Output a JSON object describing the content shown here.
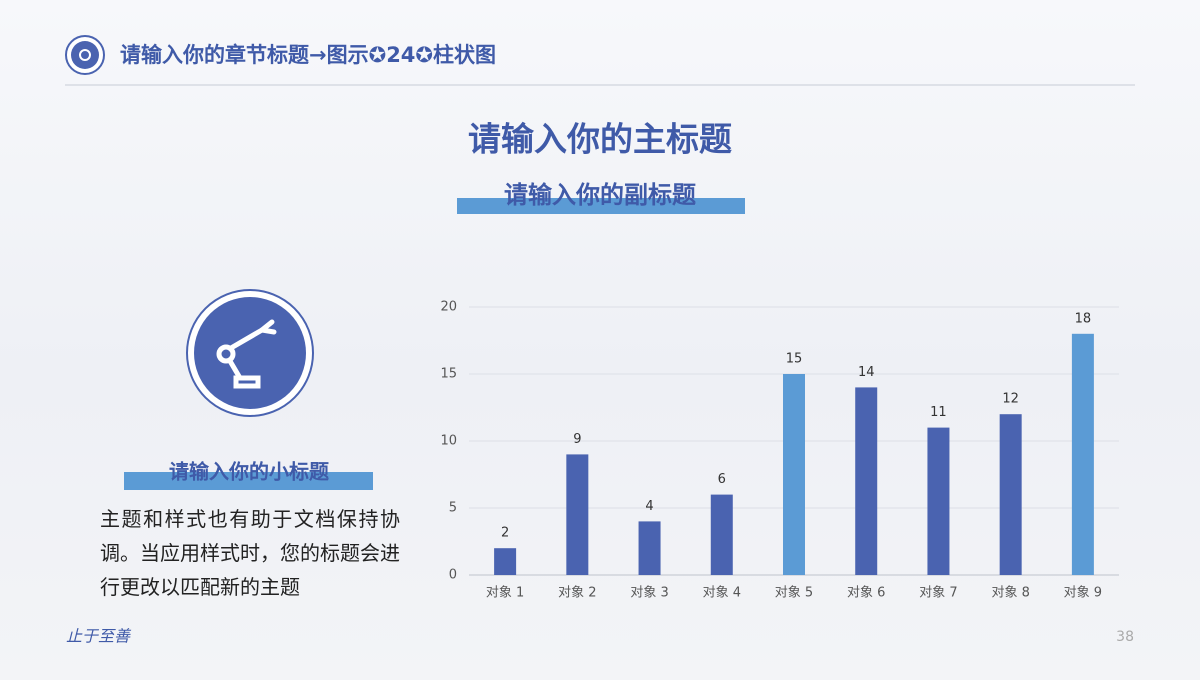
{
  "header": {
    "title": "请输入你的章节标题→图示✪24✪柱状图"
  },
  "main_title": "请输入你的主标题",
  "subtitle": "请输入你的副标题",
  "side": {
    "title": "请输入你的小标题",
    "text": "主题和样式也有助于文档保持协调。当应用样式时，您的标题会进行更改以匹配新的主题"
  },
  "footer": {
    "motto": "止于至善",
    "page": "38"
  },
  "chart_data": {
    "type": "bar",
    "categories": [
      "对象 1",
      "对象 2",
      "对象 3",
      "对象 4",
      "对象 5",
      "对象 6",
      "对象 7",
      "对象 8",
      "对象 9"
    ],
    "values": [
      2,
      9,
      4,
      6,
      15,
      14,
      11,
      12,
      18
    ],
    "colors": [
      "#4a63b0",
      "#4a63b0",
      "#4a63b0",
      "#4a63b0",
      "#5b9bd5",
      "#4a63b0",
      "#4a63b0",
      "#4a63b0",
      "#5b9bd5"
    ],
    "ylim": [
      0,
      20
    ],
    "yticks": [
      0,
      5,
      10,
      15,
      20
    ],
    "grid": true
  }
}
